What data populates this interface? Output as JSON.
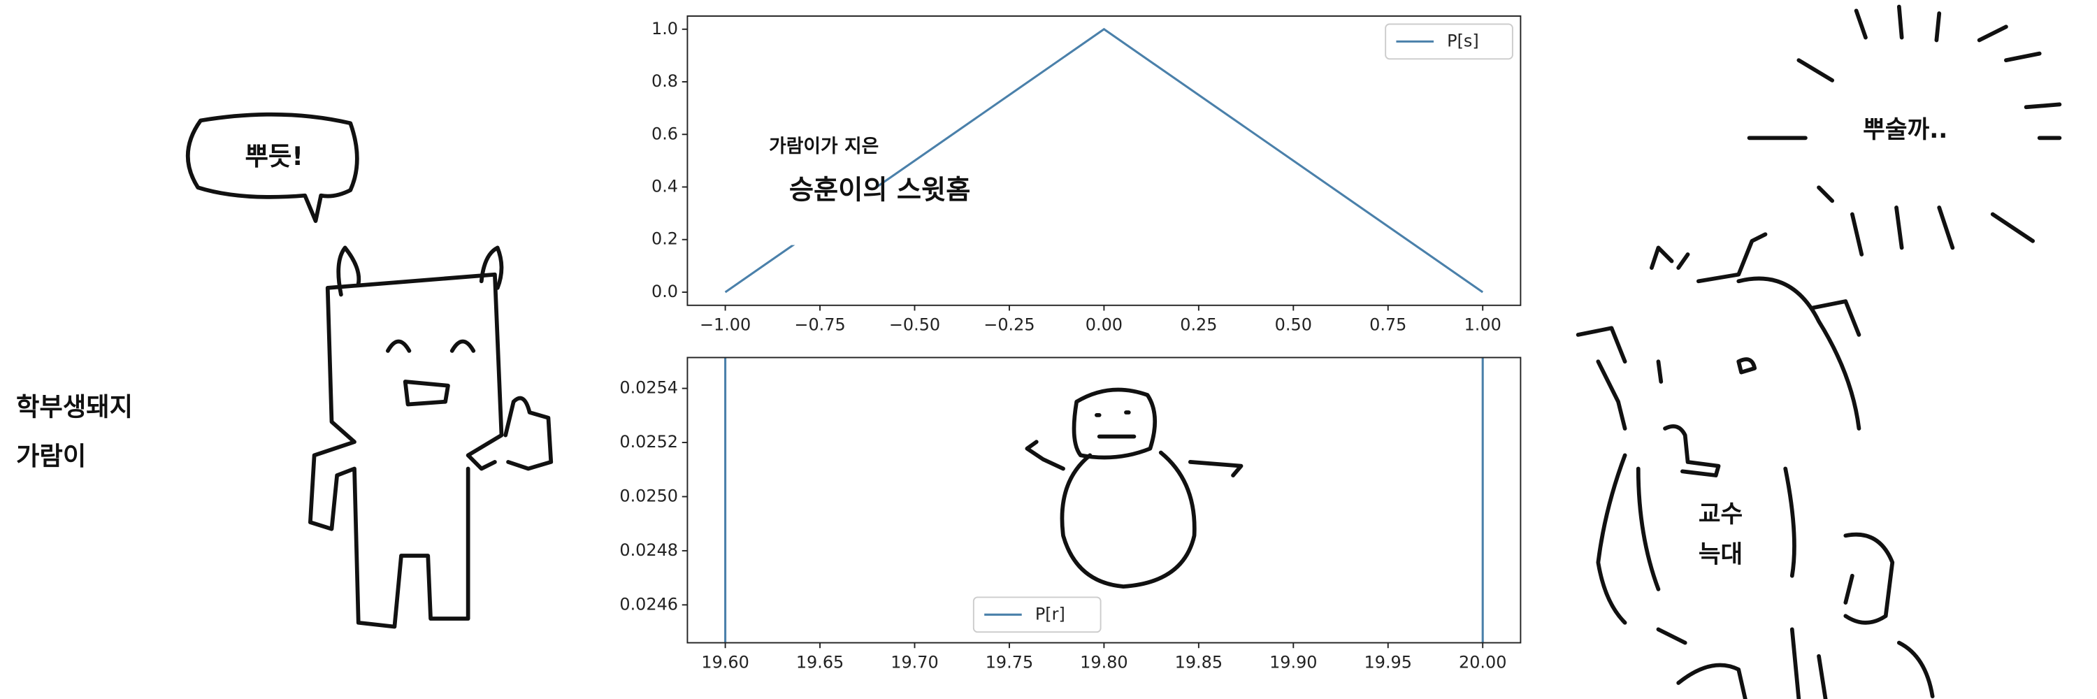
{
  "texts": {
    "speech": "뿌듯!",
    "pig_label": [
      "학부생돼지",
      "가람이"
    ],
    "caption_small": "가람이가 지은",
    "caption_big": "승훈이의 스윗홈",
    "sun_text": "뿌술까..",
    "wolf_label": [
      "교수",
      "늑대"
    ]
  },
  "chart_data": [
    {
      "type": "line",
      "x": [
        -1,
        0,
        1
      ],
      "series": [
        {
          "name": "P[s]",
          "color": "#4a80aa",
          "values": [
            0,
            1,
            0
          ]
        }
      ],
      "xlim": [
        -1.1,
        1.1
      ],
      "ylim": [
        -0.05,
        1.05
      ],
      "xticks": [
        {
          "value": -1,
          "label": "−1.00"
        },
        {
          "value": -0.75,
          "label": "−0.75"
        },
        {
          "value": -0.5,
          "label": "−0.50"
        },
        {
          "value": -0.25,
          "label": "−0.25"
        },
        {
          "value": 0,
          "label": "0.00"
        },
        {
          "value": 0.25,
          "label": "0.25"
        },
        {
          "value": 0.5,
          "label": "0.50"
        },
        {
          "value": 0.75,
          "label": "0.75"
        },
        {
          "value": 1,
          "label": "1.00"
        }
      ],
      "yticks": [
        {
          "value": 0,
          "label": "0.0"
        },
        {
          "value": 0.2,
          "label": "0.2"
        },
        {
          "value": 0.4,
          "label": "0.4"
        },
        {
          "value": 0.6,
          "label": "0.6"
        },
        {
          "value": 0.8,
          "label": "0.8"
        },
        {
          "value": 1,
          "label": "1.0"
        }
      ],
      "legend": "upper right"
    },
    {
      "type": "vlines",
      "series": [
        {
          "name": "P[r]",
          "color": "#4a80aa",
          "x": [
            19.6,
            20.0
          ]
        }
      ],
      "xlim": [
        19.58,
        20.02
      ],
      "ylim": [
        0.02446,
        0.025514
      ],
      "xticks": [
        {
          "value": 19.6,
          "label": "19.60"
        },
        {
          "value": 19.65,
          "label": "19.65"
        },
        {
          "value": 19.7,
          "label": "19.70"
        },
        {
          "value": 19.75,
          "label": "19.75"
        },
        {
          "value": 19.8,
          "label": "19.80"
        },
        {
          "value": 19.85,
          "label": "19.85"
        },
        {
          "value": 19.9,
          "label": "19.90"
        },
        {
          "value": 19.95,
          "label": "19.95"
        },
        {
          "value": 20.0,
          "label": "20.00"
        }
      ],
      "yticks": [
        {
          "value": 0.0246,
          "label": "0.0246"
        },
        {
          "value": 0.0248,
          "label": "0.0248"
        },
        {
          "value": 0.025,
          "label": "0.0250"
        },
        {
          "value": 0.0252,
          "label": "0.0252"
        },
        {
          "value": 0.0254,
          "label": "0.0254"
        }
      ],
      "legend": "lower center"
    }
  ]
}
